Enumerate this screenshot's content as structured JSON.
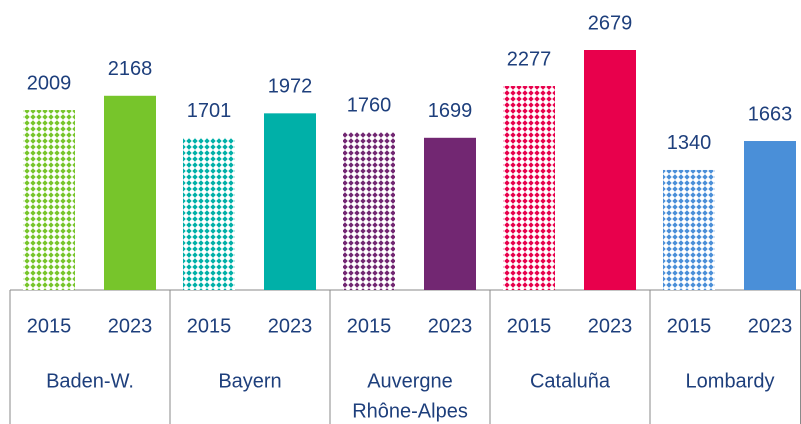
{
  "chart_data": {
    "type": "bar",
    "categories": [
      [
        "Baden-W."
      ],
      [
        "Bayern"
      ],
      [
        "Auvergne",
        "Rhône-Alpes"
      ],
      [
        "Cataluña"
      ],
      [
        "Lombardy"
      ]
    ],
    "colors": [
      "#77c52b",
      "#00b0a8",
      "#722772",
      "#e8004c",
      "#4a8fd8"
    ],
    "series": [
      {
        "name": "2015",
        "pattern": "checkered",
        "values": [
          2009,
          1701,
          1760,
          2277,
          1340
        ]
      },
      {
        "name": "2023",
        "pattern": "solid",
        "values": [
          2168,
          1972,
          1699,
          2679,
          1663
        ]
      }
    ]
  }
}
